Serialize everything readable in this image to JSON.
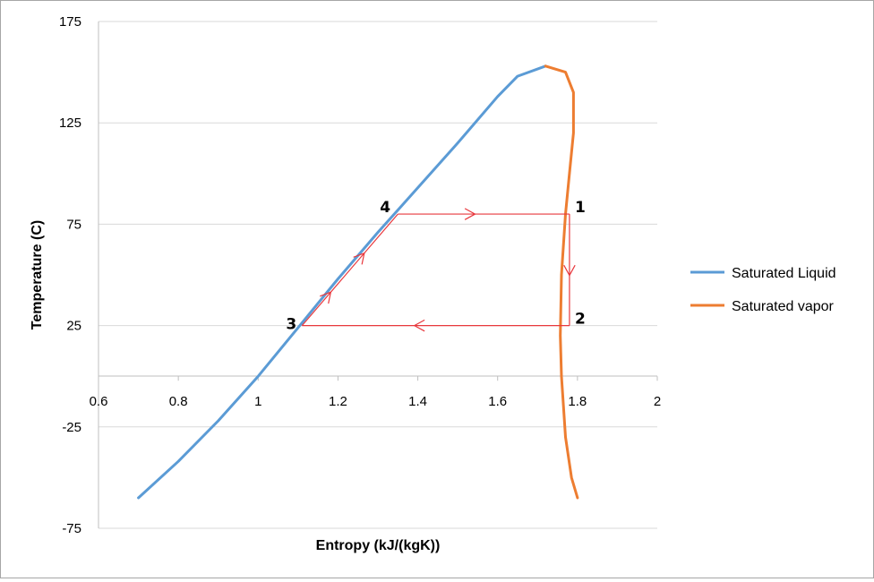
{
  "chart_data": {
    "type": "scatter",
    "title": "",
    "xlabel": "Entropy (kJ/(kgK))",
    "ylabel": "Temperature (C)",
    "xlim": [
      0.6,
      2
    ],
    "ylim": [
      -75,
      175
    ],
    "xticks": [
      "0.6",
      "0.8",
      "1",
      "1.2",
      "1.4",
      "1.6",
      "1.8",
      "2"
    ],
    "yticks": [
      "175",
      "125",
      "75",
      "25",
      "-25",
      "-75"
    ],
    "grid": "horizontal",
    "legend": "right",
    "series": [
      {
        "name": "Saturated Liquid",
        "color": "#5b9bd5",
        "x": [
          0.7,
          0.8,
          0.9,
          1.0,
          1.1,
          1.2,
          1.3,
          1.35,
          1.4,
          1.5,
          1.6,
          1.65,
          1.72
        ],
        "y": [
          -60,
          -42,
          -22,
          0,
          24,
          48,
          71,
          82,
          93,
          115,
          138,
          148,
          153
        ]
      },
      {
        "name": "Saturated vapor",
        "color": "#ed7d31",
        "x": [
          1.72,
          1.77,
          1.79,
          1.79,
          1.78,
          1.77,
          1.76,
          1.757,
          1.76,
          1.77,
          1.785,
          1.8
        ],
        "y": [
          153,
          150,
          140,
          120,
          100,
          80,
          50,
          20,
          0,
          -30,
          -50,
          -60
        ]
      }
    ],
    "cycle": {
      "color": "#e8383d",
      "points": [
        {
          "label": "1",
          "x": 1.78,
          "y": 80
        },
        {
          "label": "2",
          "x": 1.78,
          "y": 25
        },
        {
          "label": "3",
          "x": 1.11,
          "y": 25
        },
        {
          "label": "4",
          "x": 1.35,
          "y": 80
        }
      ]
    }
  }
}
